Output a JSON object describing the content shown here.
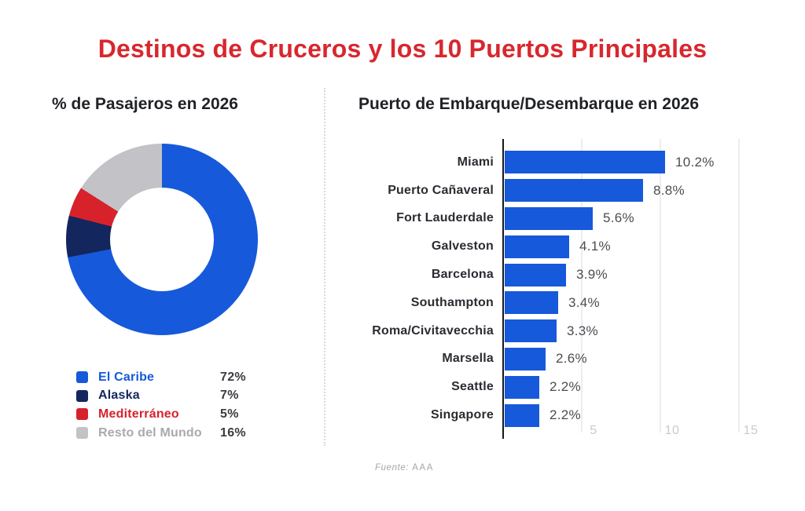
{
  "title": "Destinos de Cruceros y los 10 Puertos Principales",
  "panels": {
    "donut": {
      "subtitle": "% de Pasajeros en 2026"
    },
    "bars": {
      "subtitle": "Puerto de Embarque/Desembarque en 2026"
    }
  },
  "legend": [
    {
      "label": "El Caribe",
      "value": "72%",
      "swatch_color": "#1659DA",
      "label_color": "#1659DA"
    },
    {
      "label": "Alaska",
      "value": "7%",
      "swatch_color": "#14265E",
      "label_color": "#14265E"
    },
    {
      "label": "Mediterráneo",
      "value": "5%",
      "swatch_color": "#D7222C",
      "label_color": "#D7222C"
    },
    {
      "label": "Resto del Mundo",
      "value": "16%",
      "swatch_color": "#C3C3C7",
      "label_color": "#A9AAAE"
    }
  ],
  "footer": {
    "source_label": "Fuente:",
    "source_value": "AAA"
  },
  "chart_data": [
    {
      "type": "pie",
      "subtype": "donut",
      "title": "% de Pasajeros en 2026",
      "labels": [
        "El Caribe",
        "Alaska",
        "Mediterráneo",
        "Resto del Mundo"
      ],
      "values": [
        72,
        7,
        5,
        16
      ],
      "unit": "%",
      "colors": [
        "#1659DA",
        "#14265E",
        "#D7222C",
        "#C3C3C7"
      ],
      "start_angle_deg": 0,
      "direction": "clockwise",
      "hole_ratio": 0.54,
      "legend_position": "bottom-left"
    },
    {
      "type": "bar",
      "orientation": "horizontal",
      "title": "Puerto de Embarque/Desembarque en 2026",
      "categories": [
        "Miami",
        "Puerto Cañaveral",
        "Fort Lauderdale",
        "Galveston",
        "Barcelona",
        "Southampton",
        "Roma/Civitavecchia",
        "Marsella",
        "Seattle",
        "Singapore"
      ],
      "values": [
        10.2,
        8.8,
        5.6,
        4.1,
        3.9,
        3.4,
        3.3,
        2.6,
        2.2,
        2.2
      ],
      "value_suffix": "%",
      "xlim": [
        0,
        16
      ],
      "xticks": [
        5,
        10,
        15
      ],
      "bar_color": "#1659DA",
      "grid": true,
      "legend": "none"
    }
  ],
  "colors": {
    "title_red": "#D8272E",
    "text_dark": "#1F2126",
    "brand_blue": "#1659DA",
    "navy": "#14265E",
    "red": "#D7222C",
    "gray": "#C3C3C7",
    "axis": "#17181A",
    "gridline": "#EDEDEF",
    "tick_label": "#C9CACD",
    "source_text": "#A6A7AB"
  }
}
